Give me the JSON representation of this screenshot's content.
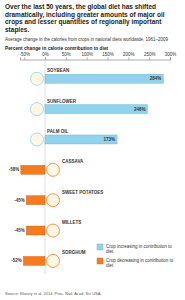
{
  "chart_data": {
    "type": "bar",
    "orientation": "horizontal",
    "title": "Over the last 50 years, the global diet has shifted dramatically, including greater amounts of major oil crops and lesser quantities of regionally important staples.",
    "subtitle": "Average change in the calories from crops in national diets worldwide, 1961–2009",
    "xlabel": "Percent change in calorie contribution to diet",
    "categories": [
      "SOYBEAN",
      "SUNFLOWER",
      "PALM OIL",
      "CASSAVA",
      "SWEET POTATOES",
      "MILLETS",
      "SORGHUM"
    ],
    "series": [
      {
        "name": "Crop increasing in contribution to diet",
        "color": "#8fd3ee",
        "values": [
          284,
          246,
          173,
          null,
          null,
          null,
          null
        ],
        "value_labels": [
          "284%",
          "246%",
          "173%",
          null,
          null,
          null,
          null
        ]
      },
      {
        "name": "Crop decreasing in contribution to diet",
        "color": "#f47b20",
        "values": [
          null,
          null,
          null,
          -58,
          -45,
          -45,
          -52
        ],
        "value_labels": [
          null,
          null,
          null,
          "-58%",
          "-45%",
          "-45%",
          "-52%"
        ]
      }
    ],
    "xlim": [
      -60,
      300
    ],
    "xticks": [
      {
        "value": -50,
        "label": "-50%"
      },
      {
        "value": 0,
        "label": "0%"
      },
      {
        "value": 50,
        "label": "50%"
      },
      {
        "value": 100,
        "label": "100%"
      },
      {
        "value": 150,
        "label": "150%"
      },
      {
        "value": 200,
        "label": "200%"
      },
      {
        "value": 250,
        "label": "250%"
      },
      {
        "value": 300,
        "label": "300%"
      }
    ],
    "grid": false,
    "legend": "lower right",
    "data_labels": true,
    "source": "Source: Khoury et al. 2014. Proc. Natl. Acad. Sci USA."
  }
}
